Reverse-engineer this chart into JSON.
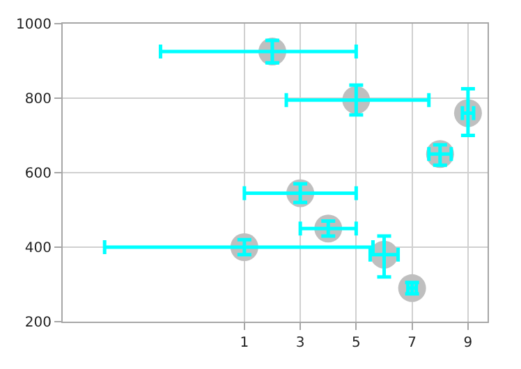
{
  "chart_data": {
    "type": "scatter",
    "x": [
      2,
      5,
      9,
      8,
      3,
      4,
      1,
      6,
      7
    ],
    "values": [
      925,
      795,
      760,
      650,
      545,
      450,
      400,
      380,
      290
    ],
    "xerrors": [
      [
        -2,
        5
      ],
      [
        2.5,
        7.6
      ],
      [
        8.8,
        9.2
      ],
      [
        7.6,
        8.4
      ],
      [
        1,
        5
      ],
      [
        3,
        5
      ],
      [
        -4,
        5.6
      ],
      [
        5.5,
        6.5
      ],
      [
        6.85,
        7.15
      ]
    ],
    "errors": [
      [
        895,
        955
      ],
      [
        755,
        835
      ],
      [
        700,
        825
      ],
      [
        620,
        675
      ],
      [
        520,
        570
      ],
      [
        430,
        470
      ],
      [
        380,
        420
      ],
      [
        320,
        430
      ],
      [
        275,
        305
      ]
    ],
    "color": "#bfbfbf",
    "marker": "circle",
    "xlim": [
      -5.5,
      9.7
    ],
    "xticks": [
      1,
      3,
      5,
      7,
      9
    ],
    "ylim": [
      200,
      1000
    ],
    "yticks": [
      200,
      400,
      600,
      800,
      1000
    ],
    "grid": true
  }
}
